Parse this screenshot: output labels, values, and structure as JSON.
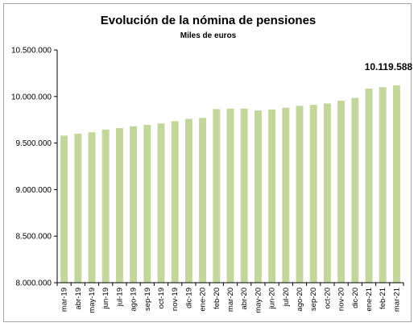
{
  "chart_data": {
    "type": "bar",
    "title": "Evolución de la nómina de pensiones",
    "subtitle": "Miles de euros",
    "xlabel": "",
    "ylabel": "",
    "ylim": [
      8000000,
      10500000
    ],
    "yticks": [
      {
        "value": 8000000,
        "label": "8.000.000"
      },
      {
        "value": 8500000,
        "label": "8.500.000"
      },
      {
        "value": 9000000,
        "label": "9.000.000"
      },
      {
        "value": 9500000,
        "label": "9.500.000"
      },
      {
        "value": 10000000,
        "label": "10.000.000"
      },
      {
        "value": 10500000,
        "label": "10.500.000"
      }
    ],
    "categories": [
      "mar-19",
      "abr-19",
      "may-19",
      "jun-19",
      "jul-19",
      "ago-19",
      "sep-19",
      "oct-19",
      "nov-19",
      "dic-19",
      "ene-20",
      "feb-20",
      "mar-20",
      "abr-20",
      "may-20",
      "jun-20",
      "jul-20",
      "ago-20",
      "sep-20",
      "oct-20",
      "nov-20",
      "dic-20",
      "ene-21",
      "feb-21",
      "mar-21"
    ],
    "values": [
      9580000,
      9600000,
      9615000,
      9645000,
      9660000,
      9680000,
      9695000,
      9710000,
      9735000,
      9760000,
      9770000,
      9865000,
      9870000,
      9870000,
      9850000,
      9860000,
      9880000,
      9900000,
      9910000,
      9925000,
      9955000,
      9985000,
      10085000,
      10100000,
      10119588
    ],
    "data_labels": [
      {
        "index": 24,
        "text": "10.119.588"
      }
    ],
    "grid": false,
    "legend": "none",
    "bar_color": "#c3d69b",
    "axis_color": "#000000"
  }
}
